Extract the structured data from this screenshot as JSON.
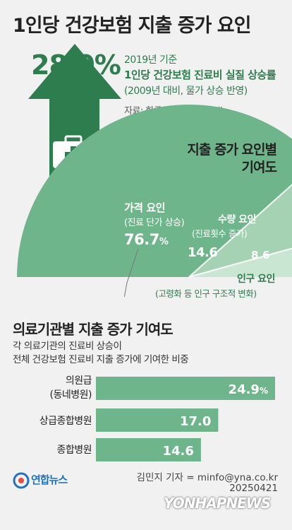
{
  "title": "1인당 건강보험 지출 증가 요인",
  "headline": {
    "value": "28.0%",
    "year": "2019년 기준",
    "title": "1인당 건강보험 진료비 실질 상승률",
    "note": "(2009년 대비, 물가 상승 반영)",
    "source": "자료: 한국개발연구원(KDI)"
  },
  "pie_title": [
    "지출 증가 요인별",
    "기여도"
  ],
  "pie_labels": {
    "price_name": "가격 요인",
    "price_sub": "(진료 단가 상승)",
    "price_value": "76.7",
    "price_unit": "%",
    "quantity_name": "수량 요인",
    "quantity_sub": "(진료횟수 증가)",
    "quantity_value": "14.6",
    "demographic_value": "8.6",
    "demographic_name": "인구 요인",
    "demographic_sub": "(고령화 등 인구 구조적 변화)"
  },
  "bar_section": {
    "heading": "의료기관별 지출 증가 기여도",
    "desc": [
      "각 의료기관의 진료비 상승이",
      "전체 건강보험 진료비 지출 증가에 기여한 비중"
    ],
    "cat_labels": [
      "의원급",
      "(동네병원)",
      "상급종합병원",
      "종합병원"
    ],
    "value_labels": [
      "24.9",
      "17.0",
      "14.6"
    ],
    "first_unit": "%"
  },
  "footer": {
    "logo_text": "연합뉴스",
    "credit": "김민지 기자 = minfo@yna.co.kr",
    "date": "20250421",
    "watermark": "YONHAPNEWS"
  },
  "colors": {
    "dark_green": "#2e7d4f",
    "mid_green": "#6fb58b",
    "light_green": "#a4d2b3",
    "pale_green": "#c9e6d2"
  },
  "chart_data": [
    {
      "type": "pie",
      "title": "지출 증가 요인별 기여도",
      "categories": [
        "가격 요인",
        "수량 요인",
        "인구 요인"
      ],
      "values": [
        76.7,
        14.6,
        8.6
      ],
      "unit": "%",
      "shape": "half-pie"
    },
    {
      "type": "bar",
      "orientation": "horizontal",
      "title": "의료기관별 지출 증가 기여도",
      "categories": [
        "의원급(동네병원)",
        "상급종합병원",
        "종합병원"
      ],
      "values": [
        24.9,
        17.0,
        14.6
      ],
      "unit": "%"
    }
  ]
}
